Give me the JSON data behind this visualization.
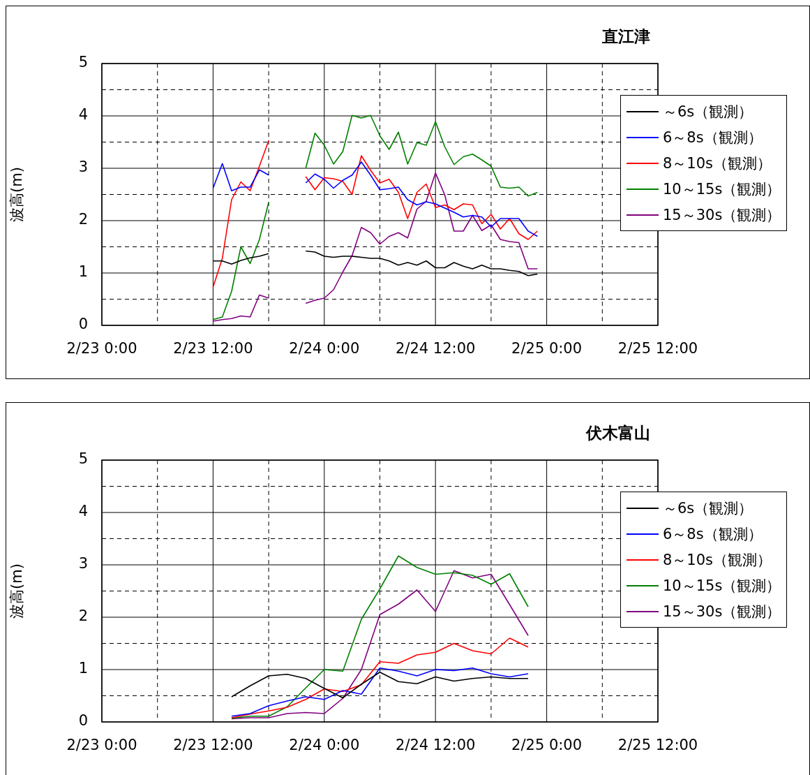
{
  "chart_data": [
    {
      "type": "line",
      "title": "直江津",
      "ylabel": "波高(m)",
      "legend": "right",
      "grid": true,
      "x": [
        "--02-23T12:00",
        "--02-23T13:00",
        "--02-23T14:00",
        "--02-23T15:00",
        "--02-23T16:00",
        "--02-23T17:00",
        "--02-23T18:00",
        "--02-23T19:00",
        "--02-23T20:00",
        "--02-23T21:00",
        "--02-23T22:00",
        "--02-23T23:00",
        "--02-24T00:00",
        "--02-24T01:00",
        "--02-24T02:00",
        "--02-24T03:00",
        "--02-24T04:00",
        "--02-24T05:00",
        "--02-24T06:00",
        "--02-24T07:00",
        "--02-24T08:00",
        "--02-24T09:00",
        "--02-24T10:00",
        "--02-24T11:00",
        "--02-24T12:00",
        "--02-24T13:00",
        "--02-24T14:00",
        "--02-24T15:00",
        "--02-24T16:00",
        "--02-24T17:00",
        "--02-24T18:00",
        "--02-24T19:00",
        "--02-24T20:00",
        "--02-24T21:00",
        "--02-24T22:00",
        "--02-24T23:00"
      ],
      "series": [
        {
          "name": "～6s（観測）",
          "color": "#000000",
          "values": [
            1.23,
            1.23,
            1.17,
            1.24,
            1.29,
            1.32,
            1.37,
            null,
            null,
            null,
            1.42,
            1.4,
            1.32,
            1.3,
            1.32,
            1.32,
            1.3,
            1.28,
            1.28,
            1.23,
            1.15,
            1.2,
            1.15,
            1.23,
            1.1,
            1.1,
            1.2,
            1.13,
            1.08,
            1.15,
            1.08,
            1.08,
            1.05,
            1.03,
            0.95,
            0.98
          ]
        },
        {
          "name": "6～8s（観測）",
          "color": "#0000ff",
          "values": [
            2.62,
            3.09,
            2.57,
            2.64,
            2.64,
            2.97,
            2.87,
            null,
            null,
            null,
            2.72,
            2.89,
            2.79,
            2.62,
            2.77,
            2.87,
            3.12,
            2.87,
            2.59,
            2.61,
            2.64,
            2.4,
            2.3,
            2.36,
            2.32,
            2.24,
            2.16,
            2.07,
            2.1,
            2.07,
            1.88,
            2.04,
            2.04,
            2.04,
            1.8,
            1.7
          ]
        },
        {
          "name": "8～10s（観測）",
          "color": "#ff0000",
          "values": [
            0.73,
            1.28,
            2.4,
            2.74,
            2.57,
            3.04,
            3.53,
            null,
            null,
            null,
            2.84,
            2.59,
            2.82,
            2.8,
            2.75,
            2.5,
            3.24,
            2.96,
            2.72,
            2.79,
            2.54,
            2.04,
            2.54,
            2.7,
            2.25,
            2.3,
            2.21,
            2.32,
            2.3,
            1.94,
            2.12,
            1.84,
            2.04,
            1.75,
            1.64,
            1.8
          ]
        },
        {
          "name": "10～15s（観測）",
          "color": "#008000",
          "values": [
            0.11,
            0.16,
            0.65,
            1.5,
            1.18,
            1.64,
            2.35,
            null,
            null,
            null,
            3.0,
            3.67,
            3.44,
            3.08,
            3.32,
            4.01,
            3.96,
            4.01,
            3.62,
            3.36,
            3.69,
            3.08,
            3.49,
            3.44,
            3.89,
            3.41,
            3.07,
            3.22,
            3.27,
            3.16,
            3.04,
            2.64,
            2.62,
            2.64,
            2.47,
            2.54
          ]
        },
        {
          "name": "15～30s（観測）",
          "color": "#800080",
          "values": [
            0.08,
            0.11,
            0.13,
            0.18,
            0.16,
            0.58,
            0.52,
            null,
            null,
            null,
            0.42,
            0.48,
            0.52,
            0.68,
            1.02,
            1.33,
            1.87,
            1.77,
            1.55,
            1.7,
            1.77,
            1.67,
            2.22,
            2.37,
            2.91,
            2.49,
            1.8,
            1.8,
            2.1,
            1.81,
            1.92,
            1.64,
            1.6,
            1.58,
            1.08,
            1.08
          ]
        }
      ],
      "xlim": [
        "--02-23T00:00",
        "--02-25T12:00"
      ],
      "xticks": [
        {
          "value": "--02-23T00:00",
          "label": "2/23 0:00"
        },
        {
          "value": "--02-23T06:00",
          "label": null
        },
        {
          "value": "--02-23T12:00",
          "label": "2/23 12:00"
        },
        {
          "value": "--02-23T18:00",
          "label": null
        },
        {
          "value": "--02-24T00:00",
          "label": "2/24 0:00"
        },
        {
          "value": "--02-24T06:00",
          "label": null
        },
        {
          "value": "--02-24T12:00",
          "label": "2/24 12:00"
        },
        {
          "value": "--02-24T18:00",
          "label": null
        },
        {
          "value": "--02-25T00:00",
          "label": "2/25 0:00"
        },
        {
          "value": "--02-25T06:00",
          "label": null
        },
        {
          "value": "--02-25T12:00",
          "label": "2/25 12:00"
        }
      ],
      "ylim": [
        0,
        5
      ],
      "yticks": [
        0,
        {
          "value": 0.5,
          "label": null
        },
        1,
        {
          "value": 1.5,
          "label": null
        },
        2,
        {
          "value": 2.5,
          "label": null
        },
        3,
        {
          "value": 3.5,
          "label": null
        },
        4,
        {
          "value": 4.5,
          "label": null
        },
        5
      ]
    },
    {
      "type": "line",
      "title": "伏木富山",
      "ylabel": "波高(m)",
      "legend": "right",
      "grid": true,
      "x": [
        "--02-23T14:00",
        "--02-23T16:00",
        "--02-23T18:00",
        "--02-23T20:00",
        "--02-23T22:00",
        "--02-24T00:00",
        "--02-24T02:00",
        "--02-24T04:00",
        "--02-24T06:00",
        "--02-24T08:00",
        "--02-24T10:00",
        "--02-24T12:00",
        "--02-24T14:00",
        "--02-24T16:00",
        "--02-24T18:00",
        "--02-24T20:00",
        "--02-24T22:00"
      ],
      "series": [
        {
          "name": "～6s（観測）",
          "color": "#000000",
          "values": [
            0.48,
            0.69,
            0.88,
            0.91,
            0.83,
            0.64,
            0.46,
            0.72,
            0.95,
            0.77,
            0.73,
            0.86,
            0.78,
            0.83,
            0.86,
            0.83,
            0.83
          ]
        },
        {
          "name": "6～8s（観測）",
          "color": "#0000ff",
          "values": [
            0.11,
            0.16,
            0.31,
            0.4,
            0.48,
            0.43,
            0.6,
            0.53,
            1.03,
            0.97,
            0.88,
            1.0,
            0.98,
            1.03,
            0.92,
            0.86,
            0.92
          ]
        },
        {
          "name": "8～10s（観測）",
          "color": "#ff0000",
          "values": [
            0.08,
            0.15,
            0.21,
            0.28,
            0.43,
            0.63,
            0.58,
            0.71,
            1.15,
            1.12,
            1.28,
            1.33,
            1.5,
            1.36,
            1.3,
            1.6,
            1.43
          ]
        },
        {
          "name": "10～15s（観測）",
          "color": "#008000",
          "values": [
            0.07,
            0.11,
            0.11,
            0.29,
            0.65,
            1.0,
            0.97,
            1.96,
            2.54,
            3.17,
            2.95,
            2.82,
            2.85,
            2.8,
            2.63,
            2.83,
            2.2
          ]
        },
        {
          "name": "15～30s（観測）",
          "color": "#800080",
          "values": [
            0.06,
            0.08,
            0.08,
            0.16,
            0.18,
            0.16,
            0.45,
            1.0,
            2.05,
            2.25,
            2.52,
            2.11,
            2.89,
            2.75,
            2.82,
            2.24,
            1.65
          ]
        }
      ],
      "xlim": [
        "--02-23T00:00",
        "--02-25T12:00"
      ],
      "xticks": [
        {
          "value": "--02-23T00:00",
          "label": "2/23 0:00"
        },
        {
          "value": "--02-23T06:00",
          "label": null
        },
        {
          "value": "--02-23T12:00",
          "label": "2/23 12:00"
        },
        {
          "value": "--02-23T18:00",
          "label": null
        },
        {
          "value": "--02-24T00:00",
          "label": "2/24 0:00"
        },
        {
          "value": "--02-24T06:00",
          "label": null
        },
        {
          "value": "--02-24T12:00",
          "label": "2/24 12:00"
        },
        {
          "value": "--02-24T18:00",
          "label": null
        },
        {
          "value": "--02-25T00:00",
          "label": "2/25 0:00"
        },
        {
          "value": "--02-25T06:00",
          "label": null
        },
        {
          "value": "--02-25T12:00",
          "label": "2/25 12:00"
        }
      ],
      "ylim": [
        0,
        5
      ],
      "yticks": [
        0,
        {
          "value": 0.5,
          "label": null
        },
        1,
        {
          "value": 1.5,
          "label": null
        },
        2,
        {
          "value": 2.5,
          "label": null
        },
        3,
        {
          "value": 3.5,
          "label": null
        },
        4,
        {
          "value": 4.5,
          "label": null
        },
        5
      ]
    }
  ]
}
